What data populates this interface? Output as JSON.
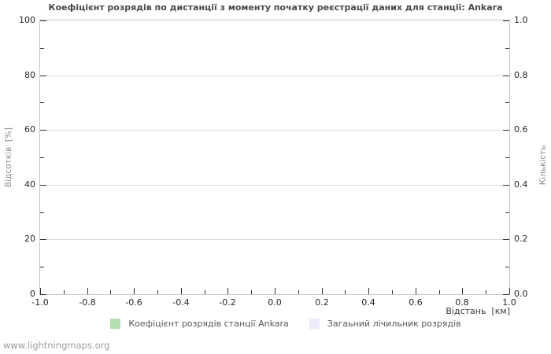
{
  "chart_data": {
    "type": "line",
    "title": "Коефіцієнт розрядів по дистанції з моменту початку реєстрації даних для станції: Ankara",
    "x_axis": {
      "label": "Відстань  [км]",
      "min": -1.0,
      "max": 1.0,
      "major_ticks": [
        -1.0,
        -0.8,
        -0.6,
        -0.4,
        -0.2,
        0.0,
        0.2,
        0.4,
        0.6,
        0.8,
        1.0
      ],
      "tick_labels": [
        "-1.0",
        "-0.8",
        "-0.6",
        "-0.4",
        "-0.2",
        "0.0",
        "0.2",
        "0.4",
        "0.6",
        "0.8",
        "1.0"
      ],
      "minor_step": 0.1
    },
    "y_axis_left": {
      "label": "Відсотків  [%]",
      "min": 0,
      "max": 100,
      "major_ticks": [
        0,
        20,
        40,
        60,
        80,
        100
      ],
      "tick_labels": [
        "0",
        "20",
        "40",
        "60",
        "80",
        "100"
      ],
      "minor_step": 10
    },
    "y_axis_right": {
      "label": "Кількість",
      "min": 0.0,
      "max": 1.0,
      "major_ticks": [
        0.0,
        0.2,
        0.4,
        0.6,
        0.8,
        1.0
      ],
      "tick_labels": [
        "0.0",
        "0.2",
        "0.4",
        "0.6",
        "0.8",
        "1.0"
      ],
      "minor_step": 0.1
    },
    "grid": {
      "horizontal": true,
      "vertical": false
    },
    "legend_position": "bottom-center",
    "series": [
      {
        "name": "Коефіцієнт розрядів станції Ankara",
        "color": "#b3dfb3",
        "points": []
      },
      {
        "name": "Загаьний лічильник розрядів",
        "color": "#ebebfb",
        "points": []
      }
    ]
  },
  "footer": {
    "watermark": "www.lightningmaps.org"
  },
  "colors": {
    "title": "#47474f",
    "tick_label": "#262626",
    "axis_title": "#8b8b8b",
    "legend_text": "#56565c",
    "watermark": "#9d9d9d",
    "plot_border": "#c6c6c6",
    "gridline": "#dcdcdc",
    "tick_mark": "#2f2f2f"
  }
}
